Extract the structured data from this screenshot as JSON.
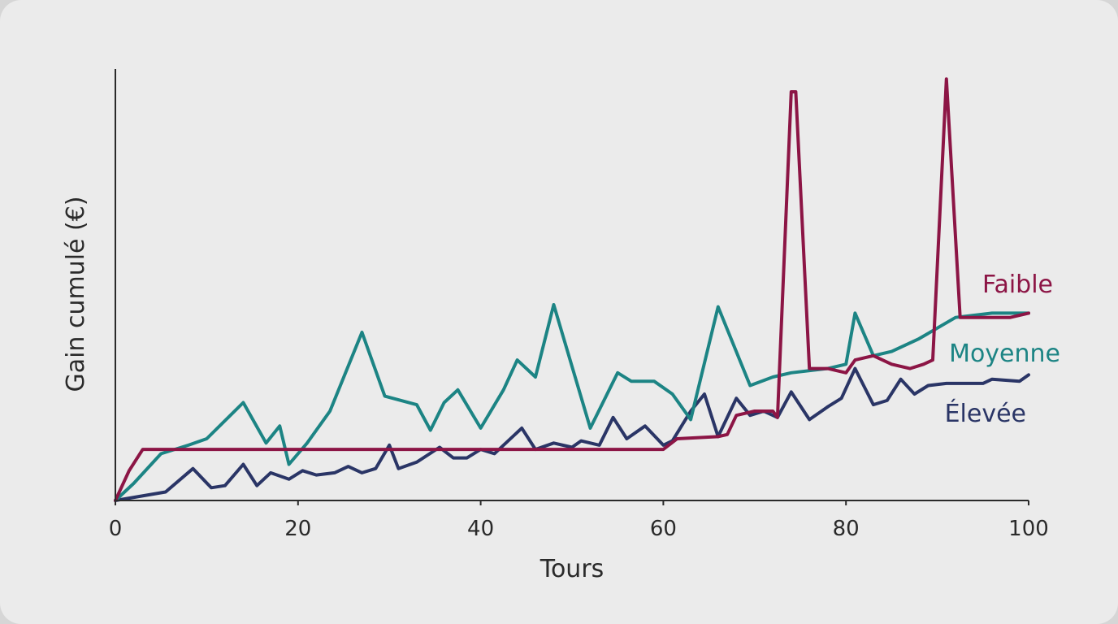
{
  "chart_data": {
    "type": "line",
    "title": "",
    "xlabel": "Tours",
    "ylabel": "Gain cumulé (€)",
    "xlim": [
      0,
      100
    ],
    "ylim": [
      0,
      100
    ],
    "xticks": [
      0,
      20,
      40,
      60,
      80,
      100
    ],
    "yticks_visible": false,
    "grid": false,
    "legend": "inline-right",
    "series": [
      {
        "name": "Faible",
        "color": "#8c1545",
        "points": [
          [
            0,
            0
          ],
          [
            1.5,
            7
          ],
          [
            3,
            12
          ],
          [
            8,
            12
          ],
          [
            20,
            12
          ],
          [
            40,
            12
          ],
          [
            60,
            12
          ],
          [
            61.5,
            14.5
          ],
          [
            66,
            15
          ],
          [
            67,
            15.5
          ],
          [
            68,
            20
          ],
          [
            70,
            21
          ],
          [
            72,
            21
          ],
          [
            72.5,
            19.5
          ],
          [
            74,
            96
          ],
          [
            74.5,
            96
          ],
          [
            76,
            31
          ],
          [
            78,
            31
          ],
          [
            80,
            30
          ],
          [
            81,
            33
          ],
          [
            83,
            34
          ],
          [
            85,
            32
          ],
          [
            87,
            31
          ],
          [
            88.5,
            32
          ],
          [
            89.5,
            33
          ],
          [
            91,
            99
          ],
          [
            92.5,
            43
          ],
          [
            96,
            43
          ],
          [
            98,
            43
          ],
          [
            100,
            44
          ]
        ]
      },
      {
        "name": "Moyenne",
        "color": "#1c8484",
        "points": [
          [
            0,
            0
          ],
          [
            2,
            4
          ],
          [
            5,
            11
          ],
          [
            8,
            13
          ],
          [
            10,
            14.5
          ],
          [
            14,
            23
          ],
          [
            16.5,
            13.5
          ],
          [
            18,
            17.5
          ],
          [
            19,
            8.5
          ],
          [
            21,
            13.5
          ],
          [
            23.5,
            21
          ],
          [
            27,
            39.5
          ],
          [
            29.5,
            24.5
          ],
          [
            33,
            22.5
          ],
          [
            34.5,
            16.5
          ],
          [
            36,
            23
          ],
          [
            37.5,
            26
          ],
          [
            40,
            17
          ],
          [
            42.5,
            26
          ],
          [
            44,
            33
          ],
          [
            46,
            29
          ],
          [
            48,
            46
          ],
          [
            52,
            17
          ],
          [
            55,
            30
          ],
          [
            56.5,
            28
          ],
          [
            59,
            28
          ],
          [
            61,
            25
          ],
          [
            63,
            19
          ],
          [
            66,
            45.5
          ],
          [
            69.5,
            27
          ],
          [
            72,
            29
          ],
          [
            74,
            30
          ],
          [
            78,
            31
          ],
          [
            80,
            32
          ],
          [
            81,
            44
          ],
          [
            83,
            34
          ],
          [
            85,
            35
          ],
          [
            88,
            38
          ],
          [
            92,
            43
          ],
          [
            96,
            44
          ],
          [
            100,
            44
          ]
        ]
      },
      {
        "name": "Élevée",
        "color": "#2a3566",
        "points": [
          [
            0,
            0
          ],
          [
            5.5,
            2
          ],
          [
            8.5,
            7.5
          ],
          [
            10.5,
            3
          ],
          [
            12,
            3.5
          ],
          [
            14,
            8.5
          ],
          [
            15.5,
            3.5
          ],
          [
            17,
            6.5
          ],
          [
            19,
            5
          ],
          [
            20.5,
            7
          ],
          [
            22,
            6
          ],
          [
            24,
            6.5
          ],
          [
            25.5,
            8
          ],
          [
            27,
            6.5
          ],
          [
            28.5,
            7.5
          ],
          [
            30,
            13
          ],
          [
            31,
            7.5
          ],
          [
            33,
            9
          ],
          [
            35.5,
            12.5
          ],
          [
            37,
            10
          ],
          [
            38.5,
            10
          ],
          [
            40,
            12
          ],
          [
            41.5,
            11
          ],
          [
            44.5,
            17
          ],
          [
            46,
            12
          ],
          [
            48,
            13.5
          ],
          [
            50,
            12.5
          ],
          [
            51,
            14
          ],
          [
            53,
            13
          ],
          [
            54.5,
            19.5
          ],
          [
            56,
            14.5
          ],
          [
            58,
            17.5
          ],
          [
            60,
            13
          ],
          [
            61,
            14
          ],
          [
            63,
            21
          ],
          [
            64.5,
            25
          ],
          [
            66,
            15
          ],
          [
            68,
            24
          ],
          [
            69.5,
            20
          ],
          [
            71,
            21
          ],
          [
            72.5,
            19.5
          ],
          [
            74,
            25.5
          ],
          [
            76,
            19
          ],
          [
            78,
            22
          ],
          [
            79.5,
            24
          ],
          [
            81,
            31
          ],
          [
            83,
            22.5
          ],
          [
            84.5,
            23.5
          ],
          [
            86,
            28.5
          ],
          [
            87.5,
            25
          ],
          [
            89,
            27
          ],
          [
            91,
            27.5
          ],
          [
            93,
            27.5
          ],
          [
            95,
            27.5
          ],
          [
            96,
            28.5
          ],
          [
            99,
            28
          ],
          [
            100,
            29.5
          ]
        ]
      }
    ]
  }
}
